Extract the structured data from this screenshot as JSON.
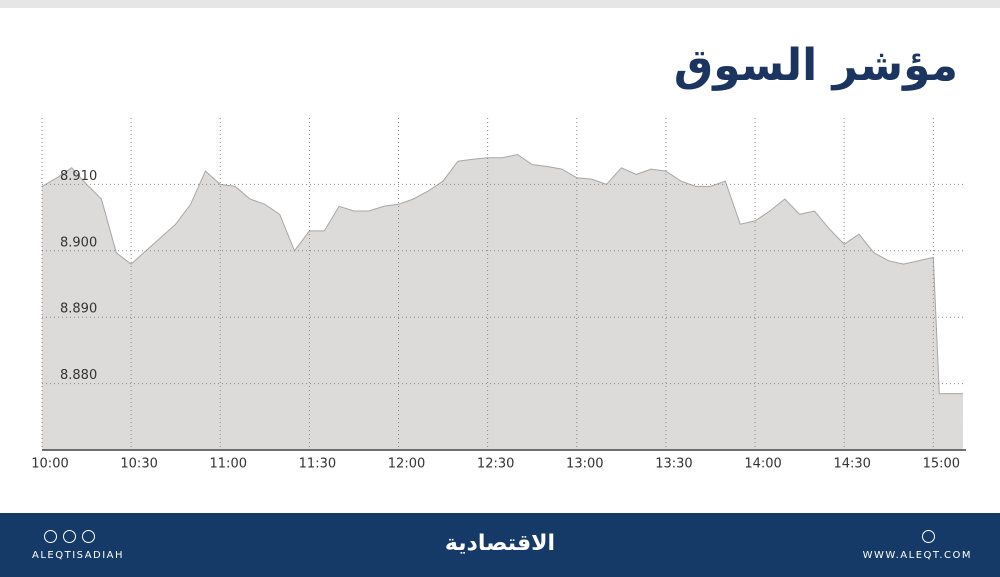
{
  "chart_data": {
    "type": "area",
    "title": "مؤشر السوق",
    "x": [
      "10:00",
      "10:05",
      "10:10",
      "10:15",
      "10:20",
      "10:25",
      "10:30",
      "10:35",
      "10:40",
      "10:45",
      "10:50",
      "10:55",
      "11:00",
      "11:05",
      "11:10",
      "11:15",
      "11:20",
      "11:25",
      "11:30",
      "11:35",
      "11:40",
      "11:45",
      "11:50",
      "11:55",
      "12:00",
      "12:05",
      "12:10",
      "12:15",
      "12:20",
      "12:25",
      "12:30",
      "12:35",
      "12:40",
      "12:45",
      "12:50",
      "12:55",
      "13:00",
      "13:05",
      "13:10",
      "13:15",
      "13:20",
      "13:25",
      "13:30",
      "13:35",
      "13:40",
      "13:45",
      "13:50",
      "13:55",
      "14:00",
      "14:05",
      "14:10",
      "14:15",
      "14:20",
      "14:25",
      "14:30",
      "14:35",
      "14:40",
      "14:45",
      "14:50",
      "14:55",
      "15:00",
      "15:02",
      "15:10"
    ],
    "values": [
      8.9097,
      8.911,
      8.9125,
      8.91,
      8.9078,
      8.8997,
      8.898,
      8.9,
      8.902,
      8.904,
      8.907,
      8.912,
      8.91,
      8.9097,
      8.9078,
      8.907,
      8.9055,
      8.9,
      8.903,
      8.903,
      8.9067,
      8.906,
      8.906,
      8.9067,
      8.907,
      8.9078,
      8.909,
      8.9105,
      8.9135,
      8.9138,
      8.914,
      8.914,
      8.9145,
      8.913,
      8.9127,
      8.9123,
      8.911,
      8.9108,
      8.91,
      8.9125,
      8.9115,
      8.9123,
      8.912,
      8.9105,
      8.9097,
      8.9097,
      8.9105,
      8.904,
      8.9045,
      8.906,
      8.9078,
      8.9055,
      8.906,
      8.9033,
      8.901,
      8.9025,
      8.8997,
      8.8985,
      8.898,
      8.8985,
      8.899,
      8.8785,
      8.8785
    ],
    "color": "#dddbda",
    "line_color": "#a8a6a5",
    "xlim": [
      "10:00",
      "15:11"
    ],
    "xticks": [
      "10:00",
      "10:30",
      "11:00",
      "11:30",
      "12:00",
      "12:30",
      "13:00",
      "13:30",
      "14:00",
      "14:30",
      "15:00"
    ],
    "ylim": [
      8.87,
      8.92
    ],
    "yticks": [
      {
        "value": 8.88,
        "label": "8.880"
      },
      {
        "value": 8.89,
        "label": "8.890"
      },
      {
        "value": 8.9,
        "label": "8.900"
      },
      {
        "value": 8.91,
        "label": "8.910"
      }
    ],
    "grid": true
  },
  "footer": {
    "handle": "ALEQTISADIAH",
    "brand": "الاقتصادية",
    "website": "WWW.ALEQT.COM"
  }
}
